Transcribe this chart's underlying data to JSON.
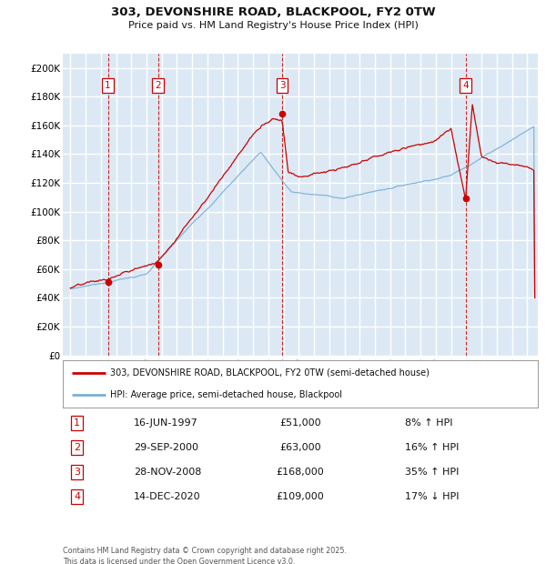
{
  "title": "303, DEVONSHIRE ROAD, BLACKPOOL, FY2 0TW",
  "subtitle": "Price paid vs. HM Land Registry's House Price Index (HPI)",
  "bg_color": "#dce9f5",
  "plot_bg_color": "#dce9f5",
  "grid_color": "#ffffff",
  "red_color": "#cc0000",
  "blue_color": "#7ab0d4",
  "transactions": [
    {
      "num": 1,
      "date_str": "16-JUN-1997",
      "year": 1997.46,
      "price": 51000,
      "pct": "8%",
      "dir": "↑"
    },
    {
      "num": 2,
      "date_str": "29-SEP-2000",
      "year": 2000.75,
      "price": 63000,
      "pct": "16%",
      "dir": "↑"
    },
    {
      "num": 3,
      "date_str": "28-NOV-2008",
      "year": 2008.91,
      "price": 168000,
      "pct": "35%",
      "dir": "↑"
    },
    {
      "num": 4,
      "date_str": "14-DEC-2020",
      "year": 2020.95,
      "price": 109000,
      "pct": "17%",
      "dir": "↓"
    }
  ],
  "legend_label_red": "303, DEVONSHIRE ROAD, BLACKPOOL, FY2 0TW (semi-detached house)",
  "legend_label_blue": "HPI: Average price, semi-detached house, Blackpool",
  "footer": "Contains HM Land Registry data © Crown copyright and database right 2025.\nThis data is licensed under the Open Government Licence v3.0.",
  "ylim": [
    0,
    210000
  ],
  "yticks": [
    0,
    20000,
    40000,
    60000,
    80000,
    100000,
    120000,
    140000,
    160000,
    180000,
    200000
  ],
  "ytick_labels": [
    "£0",
    "£20K",
    "£40K",
    "£60K",
    "£80K",
    "£100K",
    "£120K",
    "£140K",
    "£160K",
    "£180K",
    "£200K"
  ],
  "xmin": 1994.5,
  "xmax": 2025.7,
  "xticks": [
    1995,
    1996,
    1997,
    1998,
    1999,
    2000,
    2001,
    2002,
    2003,
    2004,
    2005,
    2006,
    2007,
    2008,
    2009,
    2010,
    2011,
    2012,
    2013,
    2014,
    2015,
    2016,
    2017,
    2018,
    2019,
    2020,
    2021,
    2022,
    2023,
    2024,
    2025
  ]
}
